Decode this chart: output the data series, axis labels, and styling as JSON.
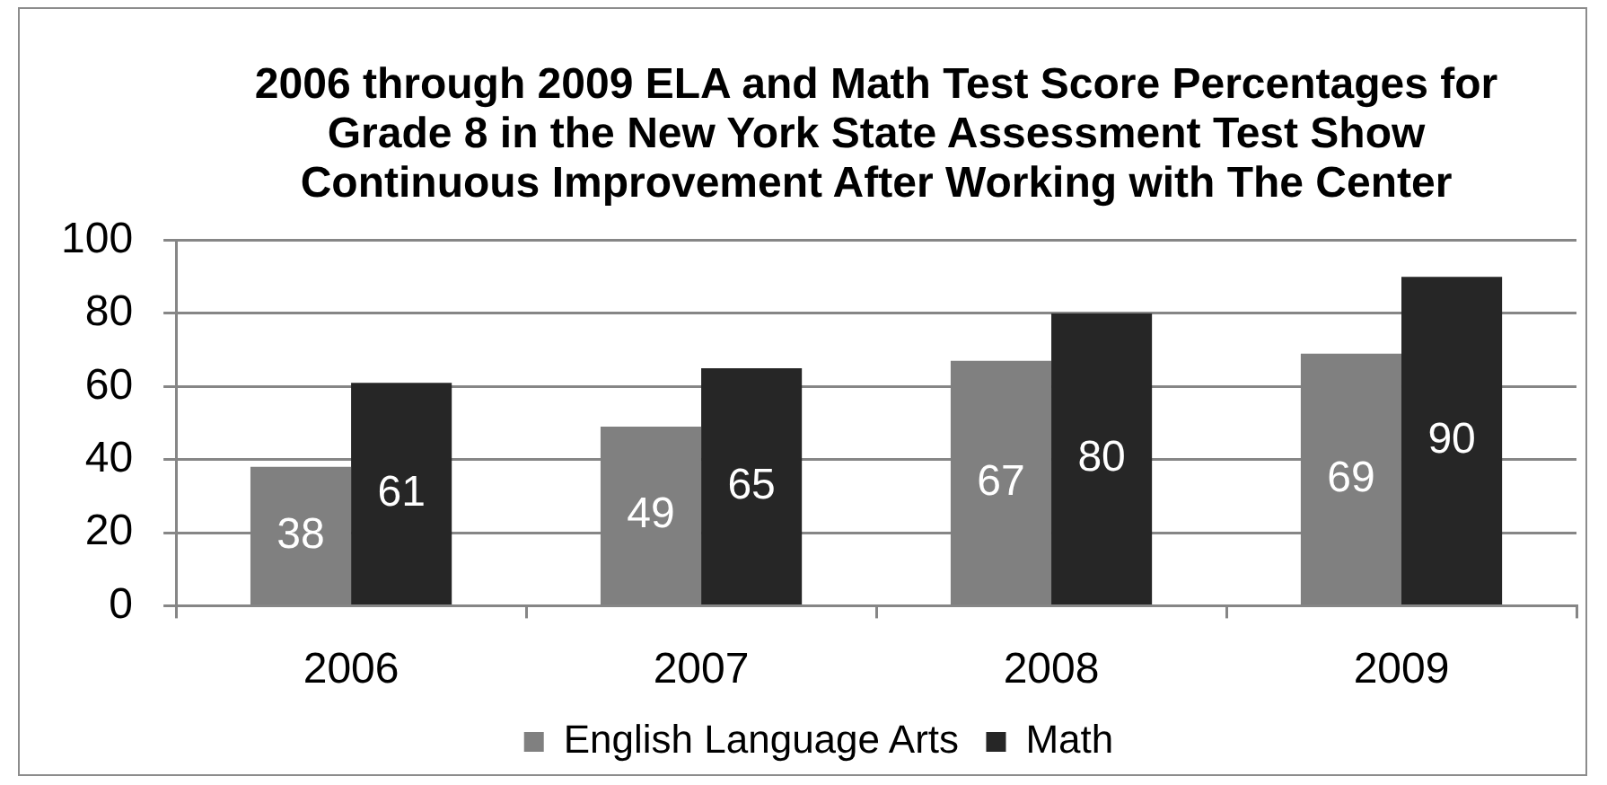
{
  "chart_data": {
    "type": "bar",
    "title": "2006 through 2009 ELA and Math Test Score Percentages for Grade 8 in the New York State Assessment Test Show Continuous Improvement After Working with The Center",
    "categories": [
      "2006",
      "2007",
      "2008",
      "2009"
    ],
    "series": [
      {
        "name": "English Language Arts",
        "color": "#808080",
        "values": [
          38,
          49,
          67,
          69
        ]
      },
      {
        "name": "Math",
        "color": "#262626",
        "values": [
          61,
          65,
          80,
          90
        ]
      }
    ],
    "ylim": [
      0,
      100
    ],
    "yticks": [
      0,
      20,
      40,
      60,
      80,
      100
    ],
    "grid": "y",
    "legend": "bottom",
    "data_labels": true
  }
}
